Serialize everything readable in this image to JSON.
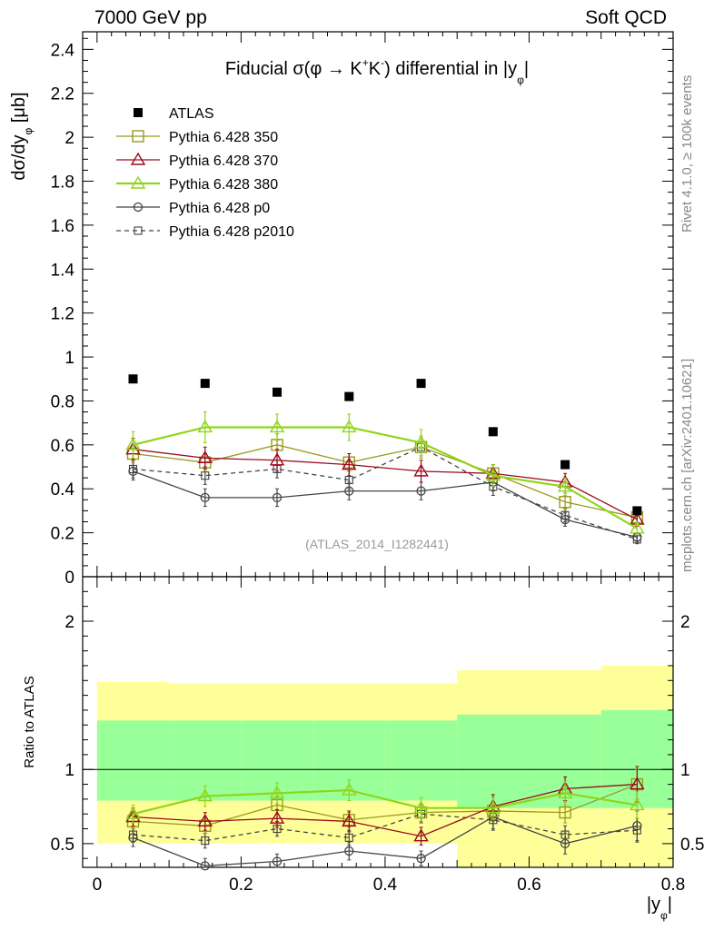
{
  "header": {
    "left": "7000 GeV pp",
    "right": "Soft QCD"
  },
  "side_labels": {
    "rivet": "Rivet 4.1.0, ≥ 100k events",
    "mcplots": "mcplots.cern.ch [arXiv:2401.10621]"
  },
  "colors": {
    "atlas": "#000000",
    "p350": "#9a9a1e",
    "p370": "#9b0a1e",
    "p380": "#8ed61a",
    "p0": "#444444",
    "p2010": "#444444",
    "band_outer": "#ffff99",
    "band_inner": "#99ff99"
  },
  "chart_data": [
    {
      "type": "scatter",
      "title": "Fiducial σ(φ → K⁺K⁻) differential in |y_φ|",
      "title_parts": {
        "main": "Fiducial σ(φ →  K",
        "sup1": "+",
        "mid": "K",
        "sup2": "-",
        "end": ") differential in |y",
        "sub": "φ",
        "close": "|"
      },
      "ylabel": "dσ/dy_φ [μb]",
      "ylabel_parts": {
        "main": "dσ/dy",
        "sub": "φ",
        "unit": " [μb]"
      },
      "watermark": "(ATLAS_2014_I1282441)",
      "xlim": [
        -0.02,
        0.8
      ],
      "ylim": [
        0,
        2.48
      ],
      "yticks": [
        0,
        0.2,
        0.4,
        0.6,
        0.8,
        1,
        1.2,
        1.4,
        1.6,
        1.8,
        2,
        2.2,
        2.4
      ],
      "ytick_labels": [
        "0",
        "0.2",
        "0.4",
        "0.6",
        "0.8",
        "1",
        "1.2",
        "1.4",
        "1.6",
        "1.8",
        "2",
        "2.2",
        "2.4"
      ],
      "x": [
        0.05,
        0.15,
        0.25,
        0.35,
        0.45,
        0.55,
        0.65,
        0.75
      ],
      "series": [
        {
          "name": "ATLAS",
          "key": "atlas",
          "marker": "square-filled",
          "line": "none",
          "values": [
            0.9,
            0.88,
            0.84,
            0.82,
            0.88,
            0.66,
            0.51,
            0.3
          ],
          "errors": [
            0,
            0,
            0,
            0,
            0,
            0,
            0,
            0
          ]
        },
        {
          "name": "Pythia 6.428 350",
          "key": "p350",
          "marker": "square-open",
          "line": "solid",
          "values": [
            0.56,
            0.52,
            0.6,
            0.52,
            0.59,
            0.47,
            0.34,
            0.27
          ],
          "errors": [
            0.04,
            0.04,
            0.05,
            0.04,
            0.05,
            0.04,
            0.04,
            0.03
          ]
        },
        {
          "name": "Pythia 6.428 370",
          "key": "p370",
          "marker": "triangle-open",
          "line": "solid",
          "values": [
            0.58,
            0.54,
            0.53,
            0.51,
            0.48,
            0.47,
            0.43,
            0.26
          ],
          "errors": [
            0.05,
            0.05,
            0.05,
            0.05,
            0.05,
            0.04,
            0.04,
            0.03
          ]
        },
        {
          "name": "Pythia 6.428 380",
          "key": "p380",
          "marker": "triangle-open",
          "line": "solid",
          "values": [
            0.6,
            0.68,
            0.68,
            0.68,
            0.61,
            0.46,
            0.41,
            0.22
          ],
          "errors": [
            0.06,
            0.07,
            0.06,
            0.06,
            0.06,
            0.05,
            0.04,
            0.03
          ]
        },
        {
          "name": "Pythia 6.428 p0",
          "key": "p0",
          "marker": "circle-open",
          "line": "solid",
          "values": [
            0.48,
            0.36,
            0.36,
            0.39,
            0.39,
            0.43,
            0.26,
            0.18
          ],
          "errors": [
            0.04,
            0.04,
            0.04,
            0.04,
            0.04,
            0.04,
            0.03,
            0.02
          ]
        },
        {
          "name": "Pythia 6.428 p2010",
          "key": "p2010",
          "marker": "square-small-open",
          "line": "dashed",
          "values": [
            0.49,
            0.46,
            0.49,
            0.44,
            0.59,
            0.41,
            0.28,
            0.17
          ],
          "errors": [
            0.04,
            0.04,
            0.04,
            0.04,
            0.04,
            0.04,
            0.03,
            0.02
          ]
        }
      ]
    },
    {
      "type": "scatter",
      "title": "",
      "ylabel": "Ratio to ATLAS",
      "xlabel": "|y_φ|",
      "xlabel_parts": {
        "main": "|y",
        "sub": "φ",
        "close": "|"
      },
      "xlim": [
        -0.02,
        0.8
      ],
      "ylim": [
        0.34,
        2.3
      ],
      "xticks": [
        0,
        0.2,
        0.4,
        0.6,
        0.8
      ],
      "xtick_labels": [
        "0",
        "0.2",
        "0.4",
        "0.6",
        "0.8"
      ],
      "yticks": [
        0.5,
        1,
        2
      ],
      "ytick_labels": [
        "0.5",
        "1",
        "2"
      ],
      "reference_line": 1,
      "bands": {
        "edges": [
          0.0,
          0.1,
          0.2,
          0.3,
          0.4,
          0.5,
          0.6,
          0.7,
          0.8
        ],
        "outer_low": [
          0.5,
          0.5,
          0.5,
          0.5,
          0.5,
          0.34,
          0.34,
          0.34
        ],
        "outer_high": [
          1.59,
          1.58,
          1.58,
          1.58,
          1.58,
          1.67,
          1.67,
          1.7
        ],
        "inner_low": [
          0.79,
          0.79,
          0.79,
          0.79,
          0.79,
          0.74,
          0.74,
          0.74
        ],
        "inner_high": [
          1.33,
          1.33,
          1.33,
          1.33,
          1.33,
          1.37,
          1.37,
          1.4
        ]
      },
      "x": [
        0.05,
        0.15,
        0.25,
        0.35,
        0.45,
        0.55,
        0.65,
        0.75
      ],
      "series": [
        {
          "name": "Pythia 6.428 350",
          "key": "p350",
          "marker": "square-open",
          "line": "solid",
          "values": [
            0.65,
            0.62,
            0.76,
            0.66,
            0.71,
            0.72,
            0.71,
            0.9
          ],
          "errors": [
            0.05,
            0.05,
            0.06,
            0.05,
            0.06,
            0.06,
            0.07,
            0.1
          ]
        },
        {
          "name": "Pythia 6.428 370",
          "key": "p370",
          "marker": "triangle-open",
          "line": "solid",
          "values": [
            0.68,
            0.65,
            0.67,
            0.65,
            0.55,
            0.75,
            0.87,
            0.9
          ],
          "errors": [
            0.06,
            0.06,
            0.06,
            0.07,
            0.06,
            0.08,
            0.08,
            0.12
          ]
        },
        {
          "name": "Pythia 6.428 380",
          "key": "p380",
          "marker": "triangle-open",
          "line": "solid",
          "values": [
            0.7,
            0.82,
            0.84,
            0.86,
            0.74,
            0.74,
            0.84,
            0.76
          ],
          "errors": [
            0.06,
            0.07,
            0.07,
            0.07,
            0.07,
            0.07,
            0.08,
            0.09
          ]
        },
        {
          "name": "Pythia 6.428 p0",
          "key": "p0",
          "marker": "circle-open",
          "line": "solid",
          "values": [
            0.54,
            0.35,
            0.38,
            0.45,
            0.4,
            0.68,
            0.5,
            0.62
          ],
          "errors": [
            0.06,
            0.05,
            0.05,
            0.06,
            0.05,
            0.08,
            0.07,
            0.1
          ]
        },
        {
          "name": "Pythia 6.428 p2010",
          "key": "p2010",
          "marker": "square-small-open",
          "line": "dashed",
          "values": [
            0.56,
            0.52,
            0.6,
            0.54,
            0.7,
            0.66,
            0.56,
            0.59
          ],
          "errors": [
            0.05,
            0.05,
            0.05,
            0.05,
            0.06,
            0.07,
            0.06,
            0.08
          ]
        }
      ]
    }
  ]
}
